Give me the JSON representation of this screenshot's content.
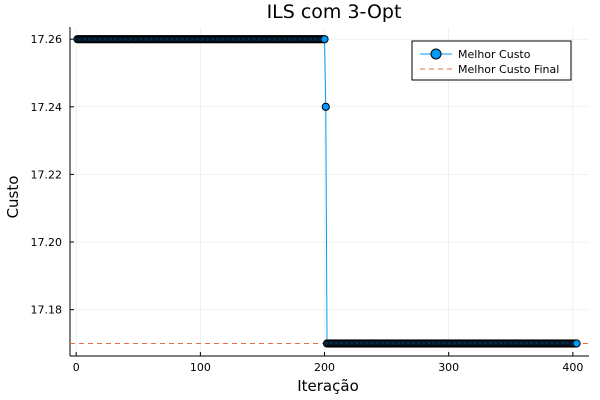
{
  "chart_data": {
    "type": "line",
    "title": "ILS com 3-Opt",
    "xlabel": "Iteração",
    "ylabel": "Custo",
    "xlim": [
      -5,
      413
    ],
    "ylim": [
      17.1663,
      17.2636
    ],
    "xticks": [
      0,
      100,
      200,
      300,
      400
    ],
    "yticks": [
      17.18,
      17.2,
      17.22,
      17.24,
      17.26
    ],
    "grid": true,
    "legend_position": "top-right",
    "colors": {
      "series": "#009AFA",
      "reference": "#E26F46",
      "marker_edge": "#000000"
    },
    "segments": [
      {
        "x_start": 1,
        "x_end": 200,
        "y": 17.26
      },
      {
        "x_start": 201,
        "x_end": 201,
        "y": 17.24
      },
      {
        "x_start": 202,
        "x_end": 403,
        "y": 17.17
      }
    ],
    "series": [
      {
        "name": "Melhor Custo",
        "style": "line-with-markers"
      },
      {
        "name": "Melhor Custo Final",
        "style": "dashed",
        "y": 17.17
      }
    ]
  }
}
